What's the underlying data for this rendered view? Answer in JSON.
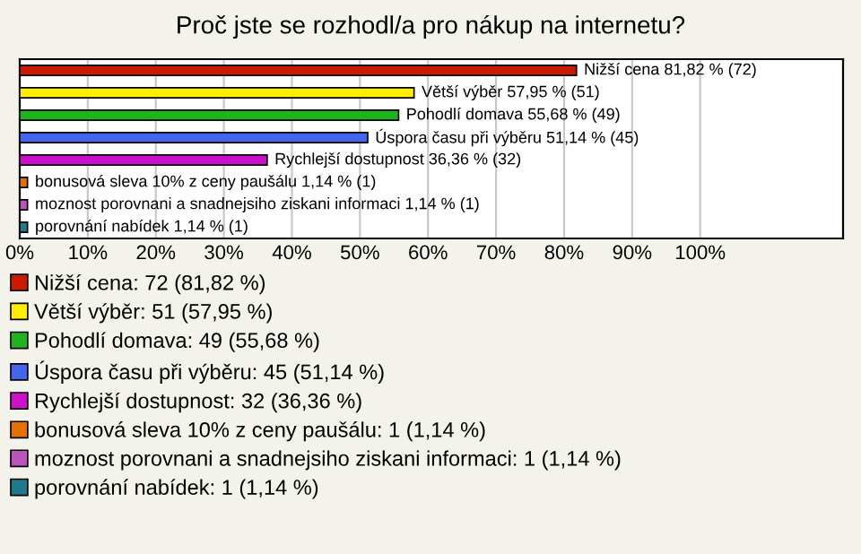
{
  "chart_data": {
    "type": "bar",
    "orientation": "horizontal",
    "title": "Proč jste se rozhodl/a pro nákup na internetu?",
    "categories": [
      null,
      null,
      null,
      null,
      null,
      null,
      null,
      null
    ],
    "series": [
      {
        "name": "Nižší cena: 72 (81,82 %)",
        "color": "#cc1a00",
        "values": [
          81.82,
          null,
          null,
          null,
          null,
          null,
          null,
          null
        ],
        "value_labels": [
          "Nižší cena 81,82 % (72)",
          null,
          null,
          null,
          null,
          null,
          null,
          null
        ]
      },
      {
        "name": "Větší výběr: 51 (57,95 %)",
        "color": "#ffee00",
        "values": [
          null,
          57.95,
          null,
          null,
          null,
          null,
          null,
          null
        ],
        "value_labels": [
          null,
          "Větší výběr 57,95 % (51)",
          null,
          null,
          null,
          null,
          null,
          null
        ]
      },
      {
        "name": "Pohodlí domava: 49 (55,68 %)",
        "color": "#1fb41f",
        "values": [
          null,
          null,
          55.68,
          null,
          null,
          null,
          null,
          null
        ],
        "value_labels": [
          null,
          null,
          "Pohodlí domava 55,68 % (49)",
          null,
          null,
          null,
          null,
          null
        ]
      },
      {
        "name": "Úspora času při výběru: 45 (51,14 %)",
        "color": "#4466ee",
        "values": [
          null,
          null,
          null,
          51.14,
          null,
          null,
          null,
          null
        ],
        "value_labels": [
          null,
          null,
          null,
          "Úspora času při výběru 51,14 % (45)",
          null,
          null,
          null,
          null
        ]
      },
      {
        "name": "Rychlejší dostupnost: 32 (36,36 %)",
        "color": "#cc11cc",
        "values": [
          null,
          null,
          null,
          null,
          36.36,
          null,
          null,
          null
        ],
        "value_labels": [
          null,
          null,
          null,
          null,
          "Rychlejší dostupnost 36,36 % (32)",
          null,
          null,
          null
        ]
      },
      {
        "name": "bonusová sleva 10% z ceny paušálu: 1 (1,14 %)",
        "color": "#e87000",
        "values": [
          null,
          null,
          null,
          null,
          null,
          1.14,
          null,
          null
        ],
        "value_labels": [
          null,
          null,
          null,
          null,
          null,
          "bonusová sleva 10% z ceny paušálu 1,14 % (1)",
          null,
          null
        ]
      },
      {
        "name": "moznost porovnani a snadnejsiho ziskani informaci: 1 (1,14 %)",
        "color": "#bb55bb",
        "values": [
          null,
          null,
          null,
          null,
          null,
          null,
          1.14,
          null
        ],
        "value_labels": [
          null,
          null,
          null,
          null,
          null,
          null,
          "moznost porovnani a snadnejsiho ziskani informaci 1,14 % (1)",
          null
        ]
      },
      {
        "name": "porovnání nabídek: 1 (1,14 %)",
        "color": "#1f7a8c",
        "values": [
          null,
          null,
          null,
          null,
          null,
          null,
          null,
          1.14
        ],
        "value_labels": [
          null,
          null,
          null,
          null,
          null,
          null,
          null,
          "porovnání nabídek 1,14 % (1)"
        ]
      }
    ],
    "xlim": [
      0,
      121
    ],
    "xticks": [
      {
        "value": 0,
        "label": "0%"
      },
      {
        "value": 10,
        "label": "10%"
      },
      {
        "value": 20,
        "label": "20%"
      },
      {
        "value": 30,
        "label": "30%"
      },
      {
        "value": 40,
        "label": "40%"
      },
      {
        "value": 50,
        "label": "50%"
      },
      {
        "value": 60,
        "label": "60%"
      },
      {
        "value": 70,
        "label": "70%"
      },
      {
        "value": 80,
        "label": "80%"
      },
      {
        "value": 90,
        "label": "90%"
      },
      {
        "value": 100,
        "label": "100%"
      }
    ],
    "grid": "x",
    "legend": "bottom",
    "tick_labels": "x"
  }
}
